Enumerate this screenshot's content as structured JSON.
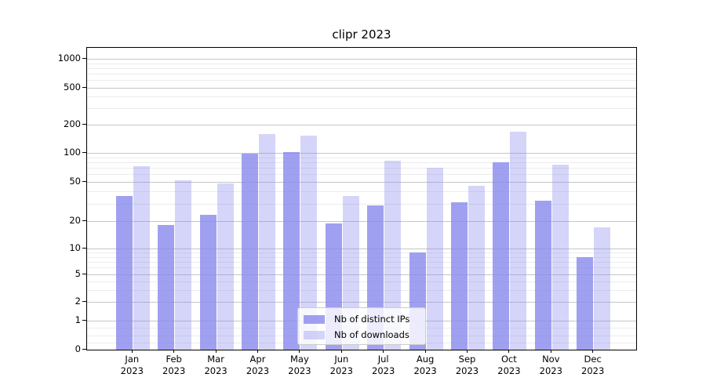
{
  "chart_data": {
    "type": "bar",
    "title": "clipr 2023",
    "xlabel": "",
    "ylabel": "",
    "x_tick_labels": [
      {
        "line1": "Jan",
        "line2": "2023"
      },
      {
        "line1": "Feb",
        "line2": "2023"
      },
      {
        "line1": "Mar",
        "line2": "2023"
      },
      {
        "line1": "Apr",
        "line2": "2023"
      },
      {
        "line1": "May",
        "line2": "2023"
      },
      {
        "line1": "Jun",
        "line2": "2023"
      },
      {
        "line1": "Jul",
        "line2": "2023"
      },
      {
        "line1": "Aug",
        "line2": "2023"
      },
      {
        "line1": "Sep",
        "line2": "2023"
      },
      {
        "line1": "Oct",
        "line2": "2023"
      },
      {
        "line1": "Nov",
        "line2": "2023"
      },
      {
        "line1": "Dec",
        "line2": "2023"
      }
    ],
    "series": [
      {
        "name": "Nb of distinct IPs",
        "color": "rgba(136,136,238,0.8)",
        "values": [
          36,
          18,
          23,
          98,
          103,
          19,
          29,
          9,
          31,
          80,
          32,
          8
        ]
      },
      {
        "name": "Nb of downloads",
        "color": "rgba(136,136,238,0.35)",
        "values": [
          73,
          52,
          48,
          160,
          153,
          36,
          84,
          70,
          46,
          168,
          76,
          17
        ]
      }
    ],
    "y_axis": {
      "scale": "symlog",
      "range": [
        0,
        1000
      ],
      "ticks": [
        {
          "label": "0",
          "value": 0
        },
        {
          "label": "1",
          "value": 1
        },
        {
          "label": "2",
          "value": 2
        },
        {
          "label": "5",
          "value": 5
        },
        {
          "label": "10",
          "value": 10
        },
        {
          "label": "20",
          "value": 20
        },
        {
          "label": "50",
          "value": 50
        },
        {
          "label": "100",
          "value": 100
        },
        {
          "label": "200",
          "value": 200
        },
        {
          "label": "500",
          "value": 500
        },
        {
          "label": "1000",
          "value": 1000
        }
      ]
    },
    "grid": {
      "major_color": "#c6c6c6",
      "minor_color": "#ececec",
      "minor_values": [
        0.25,
        0.5,
        0.75,
        3,
        4,
        6,
        7,
        8,
        9,
        30,
        40,
        60,
        70,
        80,
        90,
        300,
        400,
        600,
        700,
        800,
        900
      ]
    },
    "legend": {
      "position": "lower center"
    }
  }
}
